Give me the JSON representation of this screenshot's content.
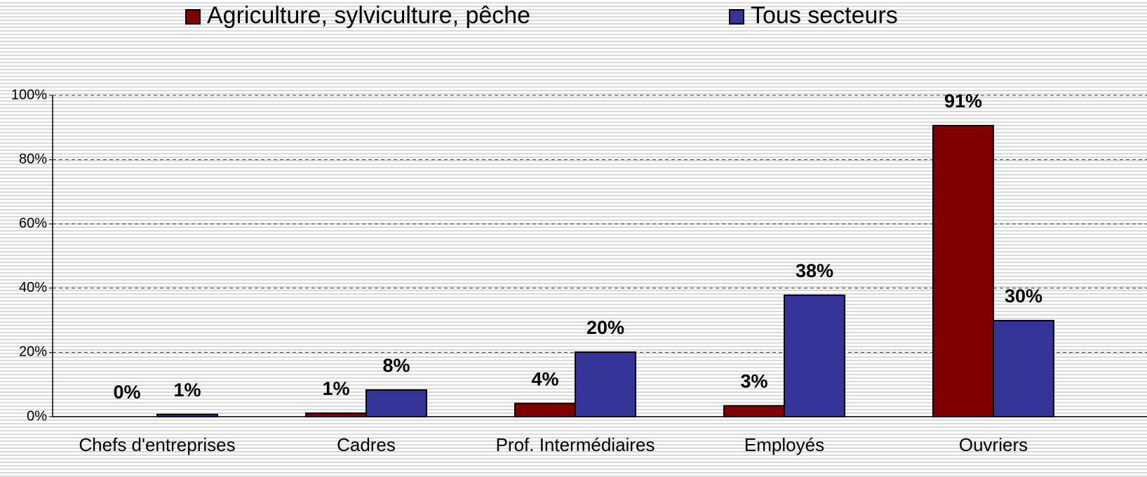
{
  "chart_data": {
    "type": "bar",
    "categories": [
      "Chefs d'entreprises",
      "Cadres",
      "Prof. Intermédiaires",
      "Employés",
      "Ouvriers"
    ],
    "series": [
      {
        "name": "Agriculture, sylviculture, pêche",
        "color": "#800000",
        "values": [
          0,
          1.1,
          4.1,
          3.4,
          90.6
        ],
        "value_labels": [
          "0%",
          "1%",
          "4%",
          "3%",
          "91%"
        ]
      },
      {
        "name": "Tous secteurs",
        "color": "#333399",
        "values": [
          0.7,
          8.3,
          20.1,
          37.8,
          29.9
        ],
        "value_labels": [
          "1%",
          "8%",
          "20%",
          "38%",
          "30%"
        ]
      }
    ],
    "ylim": [
      0,
      100
    ],
    "yticks": [
      {
        "value": 0,
        "label": "0%"
      },
      {
        "value": 20,
        "label": "20%"
      },
      {
        "value": 40,
        "label": "40%"
      },
      {
        "value": 60,
        "label": "60%"
      },
      {
        "value": 80,
        "label": "80%"
      },
      {
        "value": 100,
        "label": "100%"
      }
    ],
    "grid": true,
    "legend": "top"
  }
}
